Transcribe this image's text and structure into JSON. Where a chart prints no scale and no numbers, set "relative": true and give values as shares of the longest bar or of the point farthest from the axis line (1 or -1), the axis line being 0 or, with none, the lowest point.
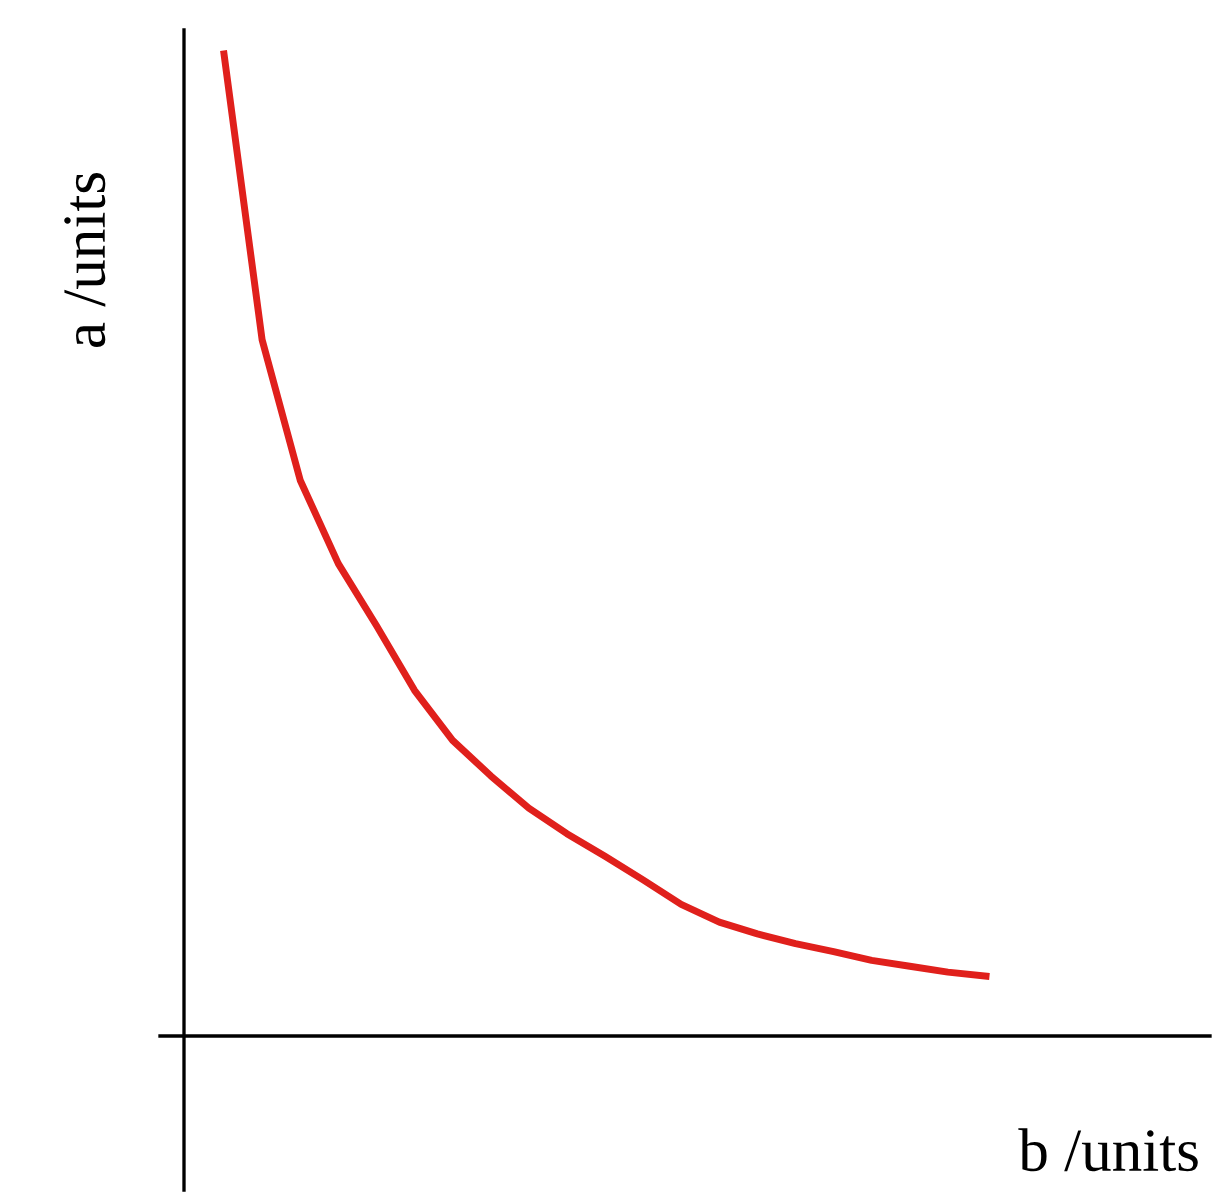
{
  "chart_data": {
    "type": "line",
    "relative": true,
    "xlabel": "b /units",
    "ylabel": "a /units",
    "categories": [
      null,
      null,
      null,
      null,
      null,
      null,
      null,
      null,
      null,
      null,
      null,
      null,
      null,
      null,
      null,
      null,
      null,
      null,
      null,
      null,
      null
    ],
    "series": [
      {
        "color": "#e0201c",
        "values": [
          1.0,
          0.709,
          0.566,
          0.481,
          0.418,
          0.352,
          0.301,
          0.265,
          0.232,
          0.206,
          0.183,
          0.159,
          0.134,
          0.116,
          0.104,
          0.094,
          0.086,
          0.077,
          0.071,
          0.065,
          0.061
        ]
      }
    ],
    "legend": false,
    "marker": "none",
    "line_style": "solid"
  }
}
